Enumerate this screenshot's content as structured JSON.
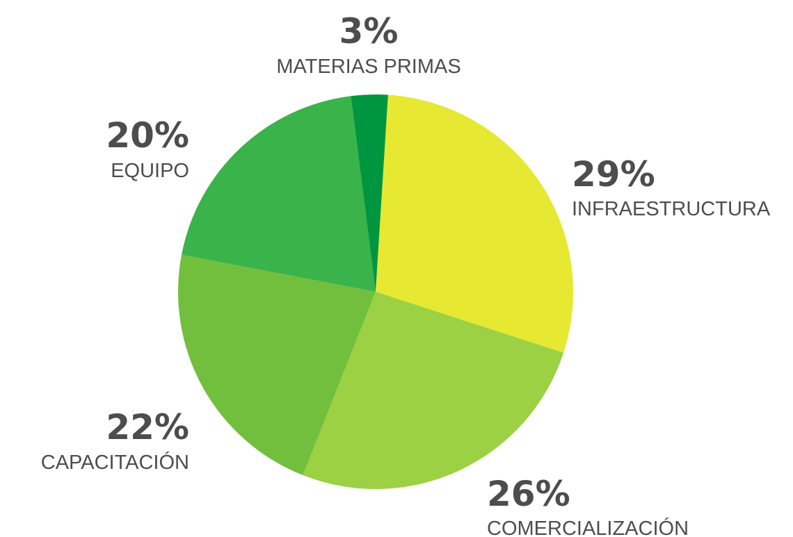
{
  "chart_data": {
    "type": "pie",
    "categories": [
      "INFRAESTRUCTURA",
      "COMERCIALIZACIÓN",
      "CAPACITACIÓN",
      "EQUIPO",
      "MATERIAS PRIMAS"
    ],
    "values": [
      29,
      26,
      22,
      20,
      3
    ],
    "value_labels": [
      "29%",
      "26%",
      "22%",
      "20%",
      "3%"
    ],
    "colors": [
      "#e6e832",
      "#9bd143",
      "#72bf3e",
      "#3ab34a",
      "#009640"
    ]
  }
}
